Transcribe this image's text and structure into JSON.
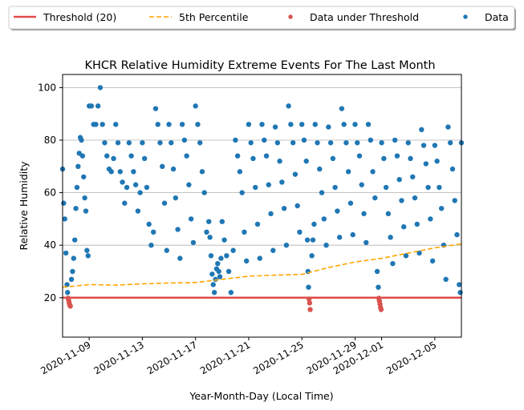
{
  "chart_data": {
    "type": "scatter",
    "title": "KHCR Relative Humidity Extreme Events For The Last Month",
    "xlabel": "Year-Month-Day (Local Time)",
    "ylabel": "Relative Humidity",
    "xlim": [
      "2020-11-07",
      "2020-12-07"
    ],
    "ylim": [
      5,
      105
    ],
    "x_ticks": [
      "2020-11-09",
      "2020-11-13",
      "2020-11-17",
      "2020-11-21",
      "2020-11-25",
      "2020-11-29",
      "2020-12-01",
      "2020-12-05"
    ],
    "y_ticks": [
      20,
      40,
      60,
      80,
      100
    ],
    "grid": "horizontal",
    "legend_placement": "top, above plot",
    "legend": [
      {
        "label": "Threshold (20)",
        "kind": "line",
        "color": "#e24a4a"
      },
      {
        "label": "5th Percentile",
        "kind": "dashed-line",
        "color": "#ffa500"
      },
      {
        "label": "Data under Threshold",
        "kind": "marker",
        "color": "#d9534f"
      },
      {
        "label": "Data",
        "kind": "marker",
        "color": "#1f77b4"
      }
    ],
    "threshold": 20,
    "percentile_5th": {
      "x": [
        "2020-11-07",
        "2020-11-09",
        "2020-11-11",
        "2020-11-13",
        "2020-11-15",
        "2020-11-17",
        "2020-11-19",
        "2020-11-21",
        "2020-11-23",
        "2020-11-25",
        "2020-11-27",
        "2020-11-29",
        "2020-12-01",
        "2020-12-03",
        "2020-12-05",
        "2020-12-07"
      ],
      "y": [
        24,
        25,
        24.8,
        25.3,
        25.6,
        25.8,
        27.0,
        28.2,
        28.6,
        28.9,
        31.5,
        33.6,
        35.0,
        37.0,
        39.0,
        40.5
      ]
    },
    "series": [
      {
        "name": "Data under Threshold",
        "color": "#d9534f",
        "points": [
          [
            "2020-11-07 10:00",
            19.8
          ],
          [
            "2020-11-07 11:00",
            19.0
          ],
          [
            "2020-11-07 12:00",
            18.0
          ],
          [
            "2020-11-07 13:00",
            17.2
          ],
          [
            "2020-11-07 14:00",
            16.8
          ],
          [
            "2020-11-25 13:00",
            19.5
          ],
          [
            "2020-11-25 14:00",
            18.0
          ],
          [
            "2020-11-25 15:00",
            15.5
          ],
          [
            "2020-11-30 19:00",
            19.8
          ],
          [
            "2020-11-30 20:00",
            18.8
          ],
          [
            "2020-11-30 21:00",
            17.6
          ],
          [
            "2020-11-30 22:00",
            16.3
          ],
          [
            "2020-11-30 23:00",
            15.5
          ]
        ]
      },
      {
        "name": "Data",
        "color": "#1f77b4",
        "points": [
          [
            "2020-11-07 00:00",
            69
          ],
          [
            "2020-11-07 02:00",
            56
          ],
          [
            "2020-11-07 04:00",
            50
          ],
          [
            "2020-11-07 06:00",
            37
          ],
          [
            "2020-11-07 08:00",
            25
          ],
          [
            "2020-11-07 09:00",
            22
          ],
          [
            "2020-11-07 16:00",
            27
          ],
          [
            "2020-11-07 18:00",
            30
          ],
          [
            "2020-11-07 20:00",
            35
          ],
          [
            "2020-11-07 22:00",
            42
          ],
          [
            "2020-11-08 00:00",
            54
          ],
          [
            "2020-11-08 02:00",
            62
          ],
          [
            "2020-11-08 04:00",
            70
          ],
          [
            "2020-11-08 06:00",
            75
          ],
          [
            "2020-11-08 08:00",
            81
          ],
          [
            "2020-11-08 10:00",
            80
          ],
          [
            "2020-11-08 12:00",
            74
          ],
          [
            "2020-11-08 14:00",
            66
          ],
          [
            "2020-11-08 16:00",
            58
          ],
          [
            "2020-11-08 18:00",
            53
          ],
          [
            "2020-11-08 20:00",
            38
          ],
          [
            "2020-11-08 22:00",
            36
          ],
          [
            "2020-11-09 00:00",
            93
          ],
          [
            "2020-11-09 04:00",
            93
          ],
          [
            "2020-11-09 08:00",
            86
          ],
          [
            "2020-11-09 12:00",
            86
          ],
          [
            "2020-11-09 16:00",
            93
          ],
          [
            "2020-11-09 20:00",
            100
          ],
          [
            "2020-11-10 00:00",
            86
          ],
          [
            "2020-11-10 04:00",
            79
          ],
          [
            "2020-11-10 08:00",
            74
          ],
          [
            "2020-11-10 12:00",
            69
          ],
          [
            "2020-11-10 16:00",
            68
          ],
          [
            "2020-11-10 20:00",
            73
          ],
          [
            "2020-11-11 00:00",
            86
          ],
          [
            "2020-11-11 04:00",
            79
          ],
          [
            "2020-11-11 08:00",
            68
          ],
          [
            "2020-11-11 12:00",
            64
          ],
          [
            "2020-11-11 16:00",
            56
          ],
          [
            "2020-11-11 20:00",
            62
          ],
          [
            "2020-11-12 00:00",
            79
          ],
          [
            "2020-11-12 04:00",
            74
          ],
          [
            "2020-11-12 08:00",
            68
          ],
          [
            "2020-11-12 12:00",
            63
          ],
          [
            "2020-11-12 16:00",
            53
          ],
          [
            "2020-11-12 20:00",
            60
          ],
          [
            "2020-11-13 00:00",
            79
          ],
          [
            "2020-11-13 04:00",
            73
          ],
          [
            "2020-11-13 08:00",
            62
          ],
          [
            "2020-11-13 12:00",
            48
          ],
          [
            "2020-11-13 16:00",
            40
          ],
          [
            "2020-11-13 20:00",
            45
          ],
          [
            "2020-11-14 00:00",
            92
          ],
          [
            "2020-11-14 04:00",
            86
          ],
          [
            "2020-11-14 08:00",
            79
          ],
          [
            "2020-11-14 12:00",
            70
          ],
          [
            "2020-11-14 16:00",
            56
          ],
          [
            "2020-11-14 20:00",
            38
          ],
          [
            "2020-11-15 00:00",
            86
          ],
          [
            "2020-11-15 04:00",
            79
          ],
          [
            "2020-11-15 08:00",
            69
          ],
          [
            "2020-11-15 12:00",
            58
          ],
          [
            "2020-11-15 16:00",
            46
          ],
          [
            "2020-11-15 20:00",
            35
          ],
          [
            "2020-11-16 00:00",
            86
          ],
          [
            "2020-11-16 04:00",
            80
          ],
          [
            "2020-11-16 08:00",
            74
          ],
          [
            "2020-11-16 12:00",
            63
          ],
          [
            "2020-11-16 16:00",
            50
          ],
          [
            "2020-11-16 20:00",
            41
          ],
          [
            "2020-11-17 00:00",
            93
          ],
          [
            "2020-11-17 04:00",
            86
          ],
          [
            "2020-11-17 08:00",
            79
          ],
          [
            "2020-11-17 12:00",
            68
          ],
          [
            "2020-11-17 16:00",
            60
          ],
          [
            "2020-11-17 20:00",
            45
          ],
          [
            "2020-11-18 00:00",
            49
          ],
          [
            "2020-11-18 02:00",
            43
          ],
          [
            "2020-11-18 04:00",
            36
          ],
          [
            "2020-11-18 06:00",
            29
          ],
          [
            "2020-11-18 08:00",
            25
          ],
          [
            "2020-11-18 10:00",
            22
          ],
          [
            "2020-11-18 12:00",
            27
          ],
          [
            "2020-11-18 14:00",
            31
          ],
          [
            "2020-11-18 16:00",
            33
          ],
          [
            "2020-11-18 18:00",
            30
          ],
          [
            "2020-11-18 20:00",
            28
          ],
          [
            "2020-11-18 22:00",
            35
          ],
          [
            "2020-11-19 00:00",
            49
          ],
          [
            "2020-11-19 04:00",
            42
          ],
          [
            "2020-11-19 08:00",
            36
          ],
          [
            "2020-11-19 12:00",
            30
          ],
          [
            "2020-11-19 16:00",
            22
          ],
          [
            "2020-11-19 20:00",
            38
          ],
          [
            "2020-11-20 00:00",
            80
          ],
          [
            "2020-11-20 04:00",
            74
          ],
          [
            "2020-11-20 08:00",
            68
          ],
          [
            "2020-11-20 12:00",
            60
          ],
          [
            "2020-11-20 16:00",
            45
          ],
          [
            "2020-11-20 20:00",
            34
          ],
          [
            "2020-11-21 00:00",
            86
          ],
          [
            "2020-11-21 04:00",
            79
          ],
          [
            "2020-11-21 08:00",
            73
          ],
          [
            "2020-11-21 12:00",
            62
          ],
          [
            "2020-11-21 16:00",
            48
          ],
          [
            "2020-11-21 20:00",
            35
          ],
          [
            "2020-11-22 00:00",
            86
          ],
          [
            "2020-11-22 04:00",
            80
          ],
          [
            "2020-11-22 08:00",
            74
          ],
          [
            "2020-11-22 12:00",
            63
          ],
          [
            "2020-11-22 16:00",
            52
          ],
          [
            "2020-11-22 20:00",
            38
          ],
          [
            "2020-11-23 00:00",
            85
          ],
          [
            "2020-11-23 04:00",
            79
          ],
          [
            "2020-11-23 08:00",
            72
          ],
          [
            "2020-11-23 12:00",
            64
          ],
          [
            "2020-11-23 16:00",
            54
          ],
          [
            "2020-11-23 20:00",
            40
          ],
          [
            "2020-11-24 00:00",
            93
          ],
          [
            "2020-11-24 04:00",
            86
          ],
          [
            "2020-11-24 08:00",
            79
          ],
          [
            "2020-11-24 12:00",
            67
          ],
          [
            "2020-11-24 16:00",
            55
          ],
          [
            "2020-11-24 20:00",
            45
          ],
          [
            "2020-11-25 00:00",
            86
          ],
          [
            "2020-11-25 04:00",
            80
          ],
          [
            "2020-11-25 08:00",
            72
          ],
          [
            "2020-11-25 10:00",
            42
          ],
          [
            "2020-11-25 11:00",
            30
          ],
          [
            "2020-11-25 12:00",
            24
          ],
          [
            "2020-11-25 18:00",
            36
          ],
          [
            "2020-11-25 20:00",
            42
          ],
          [
            "2020-11-25 22:00",
            48
          ],
          [
            "2020-11-26 00:00",
            86
          ],
          [
            "2020-11-26 04:00",
            79
          ],
          [
            "2020-11-26 08:00",
            69
          ],
          [
            "2020-11-26 12:00",
            60
          ],
          [
            "2020-11-26 16:00",
            50
          ],
          [
            "2020-11-26 20:00",
            40
          ],
          [
            "2020-11-27 00:00",
            85
          ],
          [
            "2020-11-27 04:00",
            79
          ],
          [
            "2020-11-27 08:00",
            73
          ],
          [
            "2020-11-27 12:00",
            62
          ],
          [
            "2020-11-27 16:00",
            53
          ],
          [
            "2020-11-27 20:00",
            43
          ],
          [
            "2020-11-28 00:00",
            92
          ],
          [
            "2020-11-28 04:00",
            86
          ],
          [
            "2020-11-28 08:00",
            79
          ],
          [
            "2020-11-28 12:00",
            68
          ],
          [
            "2020-11-28 16:00",
            56
          ],
          [
            "2020-11-28 20:00",
            44
          ],
          [
            "2020-11-29 00:00",
            86
          ],
          [
            "2020-11-29 04:00",
            79
          ],
          [
            "2020-11-29 08:00",
            74
          ],
          [
            "2020-11-29 12:00",
            63
          ],
          [
            "2020-11-29 16:00",
            52
          ],
          [
            "2020-11-29 20:00",
            41
          ],
          [
            "2020-11-30 00:00",
            86
          ],
          [
            "2020-11-30 04:00",
            80
          ],
          [
            "2020-11-30 08:00",
            68
          ],
          [
            "2020-11-30 12:00",
            58
          ],
          [
            "2020-11-30 16:00",
            30
          ],
          [
            "2020-11-30 18:00",
            24
          ],
          [
            "2020-12-01 00:00",
            79
          ],
          [
            "2020-12-01 04:00",
            73
          ],
          [
            "2020-12-01 08:00",
            62
          ],
          [
            "2020-12-01 12:00",
            52
          ],
          [
            "2020-12-01 16:00",
            43
          ],
          [
            "2020-12-01 20:00",
            33
          ],
          [
            "2020-12-02 00:00",
            80
          ],
          [
            "2020-12-02 04:00",
            74
          ],
          [
            "2020-12-02 08:00",
            65
          ],
          [
            "2020-12-02 12:00",
            57
          ],
          [
            "2020-12-02 16:00",
            47
          ],
          [
            "2020-12-02 20:00",
            36
          ],
          [
            "2020-12-03 00:00",
            79
          ],
          [
            "2020-12-03 04:00",
            73
          ],
          [
            "2020-12-03 08:00",
            66
          ],
          [
            "2020-12-03 12:00",
            58
          ],
          [
            "2020-12-03 16:00",
            48
          ],
          [
            "2020-12-03 20:00",
            37
          ],
          [
            "2020-12-04 00:00",
            84
          ],
          [
            "2020-12-04 04:00",
            78
          ],
          [
            "2020-12-04 08:00",
            71
          ],
          [
            "2020-12-04 12:00",
            62
          ],
          [
            "2020-12-04 16:00",
            50
          ],
          [
            "2020-12-04 20:00",
            34
          ],
          [
            "2020-12-05 00:00",
            78
          ],
          [
            "2020-12-05 04:00",
            72
          ],
          [
            "2020-12-05 08:00",
            62
          ],
          [
            "2020-12-05 12:00",
            54
          ],
          [
            "2020-12-05 16:00",
            40
          ],
          [
            "2020-12-05 20:00",
            27
          ],
          [
            "2020-12-06 00:00",
            85
          ],
          [
            "2020-12-06 04:00",
            79
          ],
          [
            "2020-12-06 08:00",
            69
          ],
          [
            "2020-12-06 12:00",
            57
          ],
          [
            "2020-12-06 16:00",
            44
          ],
          [
            "2020-12-06 20:00",
            25
          ],
          [
            "2020-12-06 22:00",
            22
          ],
          [
            "2020-12-07 00:00",
            79
          ]
        ]
      }
    ]
  }
}
